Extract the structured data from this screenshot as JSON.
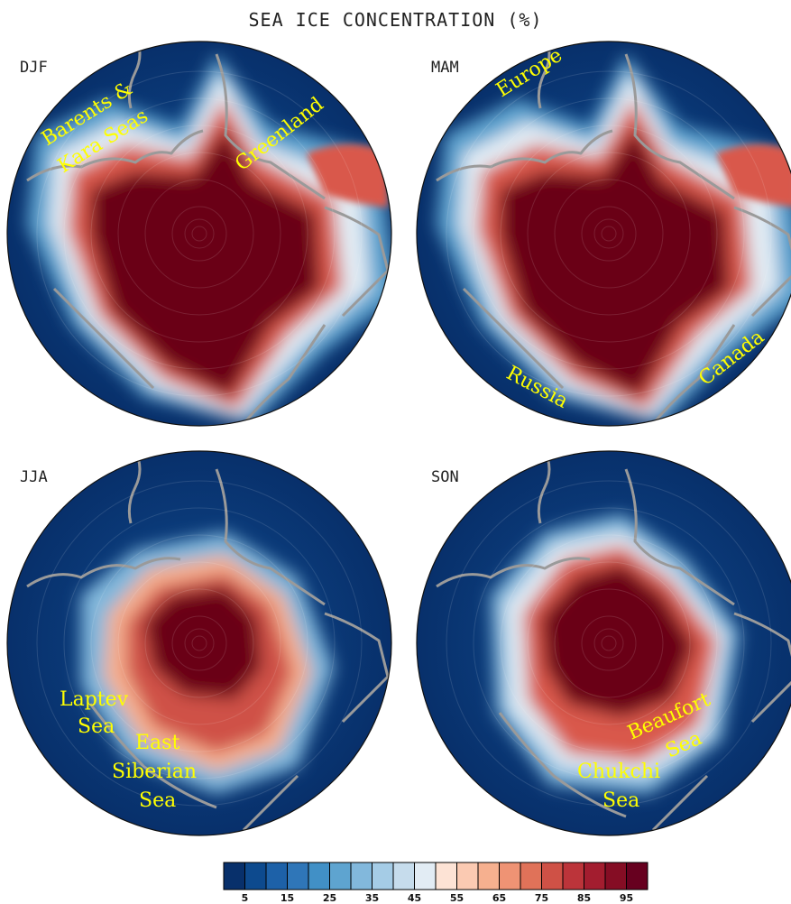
{
  "title": "SEA ICE CONCENTRATION (%)",
  "panels": [
    {
      "season": "DJF",
      "annotations": [
        {
          "text": "Barents &",
          "angle": -32
        },
        {
          "text": "Kara Seas",
          "angle": -32
        },
        {
          "text": "Greenland",
          "angle": -38
        }
      ]
    },
    {
      "season": "MAM",
      "annotations": [
        {
          "text": "Europe",
          "angle": -32
        },
        {
          "text": "Russia",
          "angle": 28
        },
        {
          "text": "Canada",
          "angle": -38
        }
      ]
    },
    {
      "season": "JJA",
      "annotations": [
        {
          "text": "Laptev",
          "angle": 0
        },
        {
          "text": "Sea",
          "angle": 0
        },
        {
          "text": "East",
          "angle": 0
        },
        {
          "text": "Siberian",
          "angle": 0
        },
        {
          "text": "Sea",
          "angle": 0
        }
      ]
    },
    {
      "season": "SON",
      "annotations": [
        {
          "text": "Beaufort",
          "angle": -24
        },
        {
          "text": "Sea",
          "angle": -24
        },
        {
          "text": "Chukchi",
          "angle": 0
        },
        {
          "text": "Sea",
          "angle": 0
        }
      ]
    }
  ],
  "colorbar": {
    "colors": [
      "#08306b",
      "#0d4a8e",
      "#1d61a8",
      "#2f76b8",
      "#4190c6",
      "#5ea4d0",
      "#82b8dc",
      "#a5cce6",
      "#c6dcec",
      "#e2ecf4",
      "#fde3d5",
      "#fbcab2",
      "#f6b08f",
      "#ef9374",
      "#e07259",
      "#cf5146",
      "#bc343a",
      "#a31d2f",
      "#850d24",
      "#67001f"
    ],
    "labels": [
      "5",
      "15",
      "25",
      "35",
      "45",
      "55",
      "65",
      "75",
      "85",
      "95"
    ]
  },
  "colors": {
    "ocean_open": "#0a3a78",
    "ice_core": "#6b0019",
    "coastline": "#9a9a9a",
    "annotation": "#ffff00"
  }
}
